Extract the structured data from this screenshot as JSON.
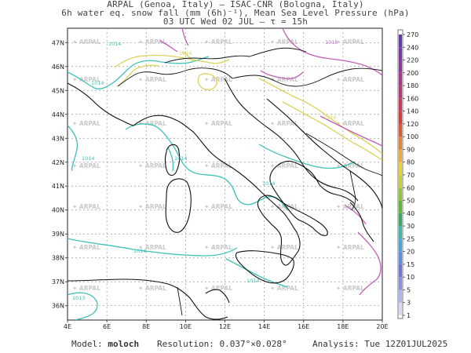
{
  "header": {
    "line1": "ARPAL (Genoa, Italy)  —  ISAC-CNR (Bologna, Italy)",
    "line2": "6h water eq. snow fall (mm (6h)⁻¹), Mean Sea Level Pressure (hPa)",
    "line3": "03 UTC Wed 02 JUL  —  τ = 15h"
  },
  "footer": {
    "model_label": "Model:",
    "model_value": "moloch",
    "resolution_label": "Resolution:",
    "resolution_value": "0.037°×0.028°",
    "analysis_label": "Analysis:",
    "analysis_value": "Tue 12Z01JUL2025"
  },
  "map": {
    "lon_labels": [
      "4E",
      "6E",
      "8E",
      "10E",
      "12E",
      "14E",
      "16E",
      "18E",
      "20E"
    ],
    "lat_labels": [
      "36N",
      "37N",
      "38N",
      "39N",
      "40N",
      "41N",
      "42N",
      "43N",
      "44N",
      "45N",
      "46N",
      "47N"
    ],
    "watermark": "ARPAL",
    "isobar_labels": [
      "1014",
      "1014",
      "1014",
      "1014",
      "1014",
      "1014",
      "1014",
      "1013",
      "1016",
      "1016",
      "1015"
    ]
  },
  "colorbar": {
    "labels": [
      "1",
      "3",
      "5",
      "10",
      "15",
      "20",
      "25",
      "30",
      "40",
      "50",
      "60",
      "70",
      "80",
      "90",
      "100",
      "120",
      "140",
      "160",
      "180",
      "200",
      "220",
      "240",
      "270"
    ],
    "colors": [
      "#d9d9f5",
      "#b4b4ec",
      "#8e8ede",
      "#6e78d2",
      "#5a90d8",
      "#4ea5cf",
      "#3fb6a8",
      "#3aaa5e",
      "#5cb83c",
      "#8fc63a",
      "#c7d23b",
      "#e8d23c",
      "#e8ae3a",
      "#e0843a",
      "#d65a3a",
      "#d23c3c",
      "#c23a5c",
      "#b23a78",
      "#a23a8c",
      "#8a3a98",
      "#763aa2",
      "#623aa8"
    ]
  }
}
